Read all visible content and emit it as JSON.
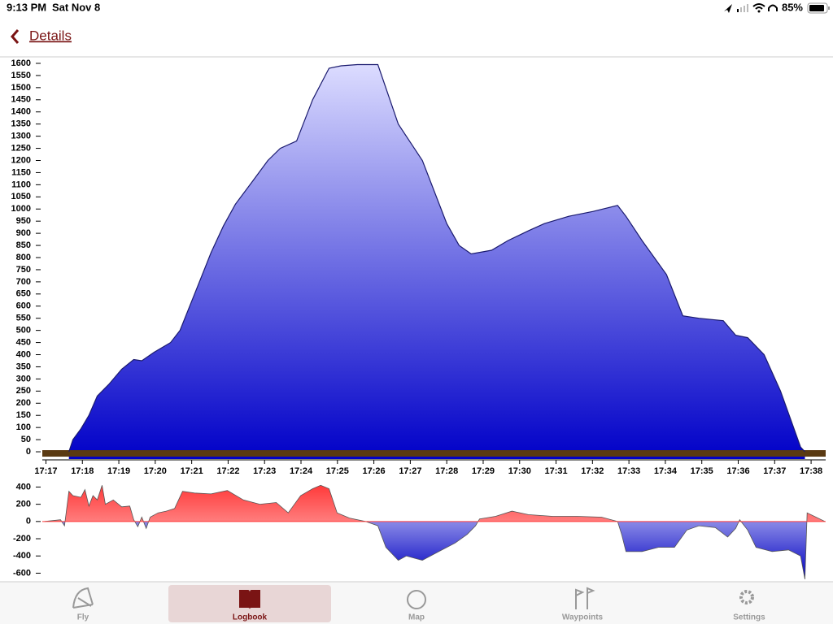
{
  "status_bar": {
    "time": "9:13 PM",
    "date": "Sat Nov 8",
    "battery": "85%"
  },
  "nav": {
    "back": "Details"
  },
  "chart_data": [
    {
      "type": "area",
      "x": [
        1037.63,
        1037.74,
        1037.96,
        1038.18,
        1038.41,
        1038.74,
        1039.08,
        1039.41,
        1039.63,
        1039.97,
        1040.42,
        1040.68,
        1041.08,
        1041.53,
        1041.87,
        1042.2,
        1042.65,
        1043.09,
        1043.43,
        1043.88,
        1044.32,
        1044.77,
        1045.1,
        1045.55,
        1046.11,
        1046.67,
        1047.33,
        1048.0,
        1048.34,
        1048.67,
        1049.23,
        1049.68,
        1050.24,
        1050.68,
        1051.35,
        1052.02,
        1052.69,
        1052.92,
        1053.36,
        1054.03,
        1054.48,
        1054.92,
        1055.59,
        1055.93,
        1056.26,
        1056.71,
        1057.16,
        1057.71,
        1057.83
      ],
      "values": [
        0,
        50,
        95,
        150,
        230,
        280,
        340,
        380,
        375,
        410,
        450,
        500,
        650,
        820,
        930,
        1020,
        1110,
        1200,
        1250,
        1280,
        1450,
        1580,
        1590,
        1595,
        1595,
        1350,
        1200,
        940,
        850,
        815,
        830,
        870,
        910,
        940,
        970,
        990,
        1015,
        970,
        870,
        730,
        560,
        550,
        540,
        480,
        470,
        400,
        250,
        20,
        0
      ],
      "gradient": [
        "#dcdcff",
        "#0000c8"
      ],
      "line_color": "#1a1a6e",
      "xlim": [
        1036.9,
        1058.4
      ],
      "xticks": [
        {
          "value": 1037,
          "label": "17:17"
        },
        {
          "value": 1038,
          "label": "17:18"
        },
        {
          "value": 1039,
          "label": "17:19"
        },
        {
          "value": 1040,
          "label": "17:20"
        },
        {
          "value": 1041,
          "label": "17:21"
        },
        {
          "value": 1042,
          "label": "17:22"
        },
        {
          "value": 1043,
          "label": "17:23"
        },
        {
          "value": 1044,
          "label": "17:24"
        },
        {
          "value": 1045,
          "label": "17:25"
        },
        {
          "value": 1046,
          "label": "17:26"
        },
        {
          "value": 1047,
          "label": "17:27"
        },
        {
          "value": 1048,
          "label": "17:28"
        },
        {
          "value": 1049,
          "label": "17:29"
        },
        {
          "value": 1050,
          "label": "17:30"
        },
        {
          "value": 1051,
          "label": "17:31"
        },
        {
          "value": 1052,
          "label": "17:32"
        },
        {
          "value": 1053,
          "label": "17:33"
        },
        {
          "value": 1054,
          "label": "17:34"
        },
        {
          "value": 1055,
          "label": "17:35"
        },
        {
          "value": 1056,
          "label": "17:36"
        },
        {
          "value": 1057,
          "label": "17:37"
        },
        {
          "value": 1058,
          "label": "17:38"
        }
      ],
      "ylim": [
        -30,
        1620
      ],
      "yticks": [
        0,
        50,
        100,
        150,
        200,
        250,
        300,
        350,
        400,
        450,
        500,
        550,
        600,
        650,
        700,
        750,
        800,
        850,
        900,
        950,
        1000,
        1050,
        1100,
        1150,
        1200,
        1250,
        1300,
        1350,
        1400,
        1450,
        1500,
        1550,
        1600
      ]
    },
    {
      "type": "vario",
      "x": [
        1036.96,
        1037.4,
        1037.51,
        1037.63,
        1037.74,
        1037.96,
        1038.07,
        1038.18,
        1038.29,
        1038.41,
        1038.54,
        1038.63,
        1038.85,
        1039.08,
        1039.3,
        1039.41,
        1039.52,
        1039.63,
        1039.75,
        1039.86,
        1040.08,
        1040.3,
        1040.53,
        1040.75,
        1041.08,
        1041.53,
        1041.98,
        1042.42,
        1042.87,
        1043.32,
        1043.65,
        1043.99,
        1044.32,
        1044.54,
        1044.77,
        1044.99,
        1045.33,
        1045.77,
        1046.11,
        1046.33,
        1046.67,
        1046.89,
        1047.33,
        1047.78,
        1048.23,
        1048.56,
        1048.79,
        1048.9,
        1049.34,
        1049.79,
        1050.24,
        1050.91,
        1051.58,
        1052.25,
        1052.69,
        1052.8,
        1052.92,
        1053.36,
        1053.81,
        1054.25,
        1054.59,
        1054.92,
        1055.37,
        1055.71,
        1055.93,
        1056.04,
        1056.26,
        1056.49,
        1056.93,
        1057.38,
        1057.71,
        1057.83,
        1057.89,
        1058.38
      ],
      "values": [
        0,
        20,
        -50,
        350,
        300,
        280,
        370,
        180,
        300,
        250,
        420,
        200,
        250,
        170,
        180,
        20,
        -60,
        50,
        -80,
        50,
        100,
        120,
        150,
        350,
        330,
        320,
        360,
        250,
        200,
        220,
        100,
        300,
        380,
        420,
        380,
        100,
        40,
        0,
        -50,
        -300,
        -450,
        -400,
        -450,
        -350,
        -250,
        -150,
        -50,
        30,
        60,
        120,
        80,
        60,
        60,
        50,
        0,
        -150,
        -350,
        -350,
        -300,
        -300,
        -100,
        -50,
        -70,
        -180,
        -80,
        20,
        -100,
        -300,
        -350,
        -330,
        -400,
        -670,
        100,
        0
      ],
      "colors": {
        "up": "#ff3a3a",
        "down": "#0000c0"
      },
      "line_color": "#555555",
      "xlim": [
        1036.9,
        1058.4
      ],
      "ylim": [
        -690,
        470
      ],
      "yticks": [
        -600,
        -400,
        -200,
        0,
        200,
        400
      ]
    }
  ],
  "tab_bar": {
    "tabs": [
      {
        "label": "Fly"
      },
      {
        "label": "Logbook",
        "selected": true
      },
      {
        "label": "Map"
      },
      {
        "label": "Waypoints"
      },
      {
        "label": "Settings"
      }
    ]
  }
}
